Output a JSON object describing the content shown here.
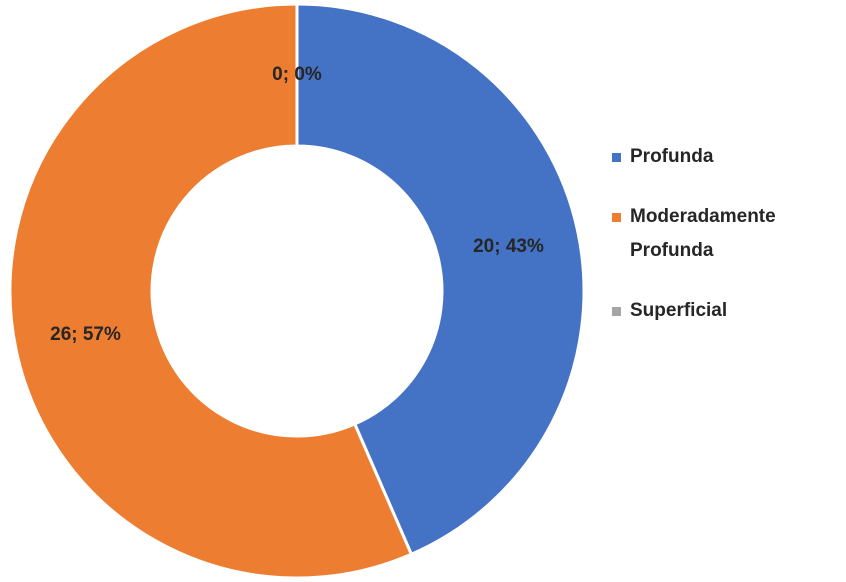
{
  "chart_data": {
    "type": "pie",
    "donut": true,
    "categories": [
      "Profunda",
      "Moderadamente Profunda",
      "Superficial"
    ],
    "values": [
      20,
      26,
      0
    ],
    "value_labels": [
      "20; 43%",
      "26; 57%",
      "0; 0%"
    ],
    "colors": [
      "#4472c4",
      "#ed7d31",
      "#a5a5a5"
    ],
    "legend": "right"
  }
}
